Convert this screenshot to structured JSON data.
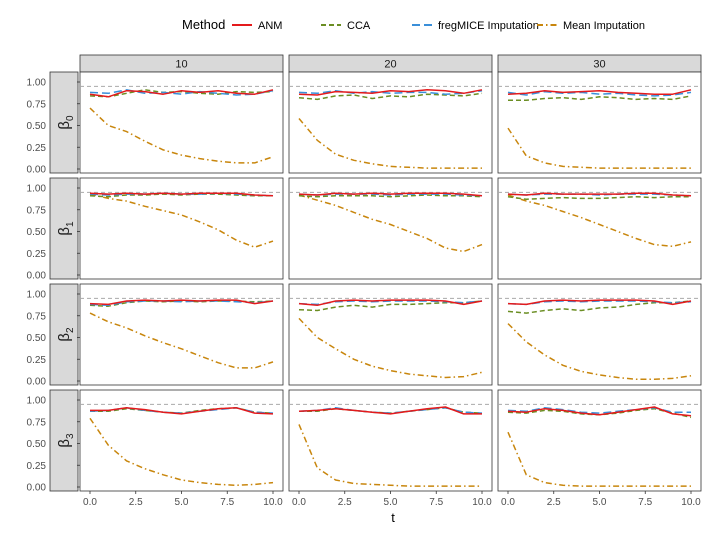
{
  "colors": {
    "ANM": "#e41a1c",
    "CCA": "#6b8e23",
    "fregMICE Imputation": "#3a8fd9",
    "Mean Imputation": "#c8860d",
    "reference": "#aaaaaa",
    "strip_fill": "#d9d9d9"
  },
  "legend": {
    "title": "Method",
    "items": [
      "ANM",
      "CCA",
      "fregMICE Imputation",
      "Mean Imputation"
    ]
  },
  "chart_data": {
    "type": "line",
    "xlabel": "t",
    "x_ticks": [
      "0.0",
      "2.5",
      "5.0",
      "7.5",
      "10.0"
    ],
    "xlim": [
      0,
      10
    ],
    "ylim": [
      0,
      1
    ],
    "y_ticks": [
      "0.00",
      "0.25",
      "0.50",
      "0.75",
      "1.00"
    ],
    "reference_line": 0.95,
    "col_facets": [
      "10",
      "20",
      "30"
    ],
    "row_facets": [
      {
        "symbol": "β",
        "sub": "0"
      },
      {
        "symbol": "β",
        "sub": "1"
      },
      {
        "symbol": "β",
        "sub": "2"
      },
      {
        "symbol": "β",
        "sub": "3"
      }
    ],
    "x": [
      0,
      1,
      2,
      3,
      4,
      5,
      6,
      7,
      8,
      9,
      10
    ],
    "panels": [
      [
        {
          "ANM": [
            0.86,
            0.83,
            0.9,
            0.89,
            0.86,
            0.9,
            0.88,
            0.9,
            0.87,
            0.86,
            0.91
          ],
          "CCA": [
            0.84,
            0.83,
            0.87,
            0.91,
            0.88,
            0.89,
            0.87,
            0.86,
            0.89,
            0.88,
            0.89
          ],
          "fregMICE Imputation": [
            0.88,
            0.87,
            0.91,
            0.87,
            0.88,
            0.86,
            0.89,
            0.87,
            0.85,
            0.86,
            0.9
          ],
          "Mean Imputation": [
            0.7,
            0.5,
            0.43,
            0.32,
            0.22,
            0.16,
            0.12,
            0.09,
            0.07,
            0.07,
            0.14
          ]
        },
        {
          "ANM": [
            0.86,
            0.85,
            0.89,
            0.88,
            0.87,
            0.9,
            0.89,
            0.91,
            0.9,
            0.87,
            0.91
          ],
          "CCA": [
            0.82,
            0.8,
            0.84,
            0.85,
            0.81,
            0.84,
            0.83,
            0.86,
            0.85,
            0.84,
            0.87
          ],
          "fregMICE Imputation": [
            0.88,
            0.87,
            0.9,
            0.87,
            0.89,
            0.87,
            0.88,
            0.88,
            0.86,
            0.87,
            0.9
          ],
          "Mean Imputation": [
            0.58,
            0.33,
            0.17,
            0.1,
            0.06,
            0.03,
            0.02,
            0.01,
            0.01,
            0.01,
            0.01
          ]
        },
        {
          "ANM": [
            0.86,
            0.87,
            0.9,
            0.88,
            0.89,
            0.9,
            0.88,
            0.87,
            0.86,
            0.86,
            0.91
          ],
          "CCA": [
            0.79,
            0.79,
            0.81,
            0.82,
            0.8,
            0.83,
            0.82,
            0.8,
            0.81,
            0.8,
            0.84
          ],
          "fregMICE Imputation": [
            0.88,
            0.85,
            0.89,
            0.87,
            0.88,
            0.86,
            0.87,
            0.85,
            0.84,
            0.85,
            0.88
          ],
          "Mean Imputation": [
            0.47,
            0.15,
            0.07,
            0.03,
            0.02,
            0.01,
            0.01,
            0.01,
            0.01,
            0.01,
            0.01
          ]
        }
      ],
      [
        {
          "ANM": [
            0.94,
            0.93,
            0.94,
            0.93,
            0.94,
            0.93,
            0.94,
            0.94,
            0.94,
            0.92,
            0.91
          ],
          "CCA": [
            0.91,
            0.9,
            0.92,
            0.92,
            0.93,
            0.92,
            0.93,
            0.93,
            0.92,
            0.91,
            0.91
          ],
          "fregMICE Imputation": [
            0.93,
            0.92,
            0.93,
            0.93,
            0.94,
            0.93,
            0.93,
            0.94,
            0.93,
            0.92,
            0.91
          ],
          "Mean Imputation": [
            0.93,
            0.88,
            0.85,
            0.79,
            0.74,
            0.69,
            0.61,
            0.52,
            0.4,
            0.32,
            0.39
          ]
        },
        {
          "ANM": [
            0.93,
            0.92,
            0.94,
            0.93,
            0.94,
            0.93,
            0.94,
            0.94,
            0.94,
            0.93,
            0.91
          ],
          "CCA": [
            0.91,
            0.9,
            0.91,
            0.91,
            0.91,
            0.9,
            0.91,
            0.92,
            0.91,
            0.91,
            0.9
          ],
          "fregMICE Imputation": [
            0.93,
            0.92,
            0.93,
            0.93,
            0.93,
            0.92,
            0.93,
            0.93,
            0.93,
            0.92,
            0.91
          ],
          "Mean Imputation": [
            0.92,
            0.86,
            0.8,
            0.72,
            0.64,
            0.58,
            0.5,
            0.42,
            0.31,
            0.27,
            0.35
          ]
        },
        {
          "ANM": [
            0.93,
            0.92,
            0.94,
            0.93,
            0.93,
            0.93,
            0.93,
            0.94,
            0.94,
            0.92,
            0.91
          ],
          "CCA": [
            0.9,
            0.87,
            0.88,
            0.89,
            0.88,
            0.88,
            0.89,
            0.9,
            0.89,
            0.9,
            0.9
          ],
          "fregMICE Imputation": [
            0.93,
            0.92,
            0.93,
            0.93,
            0.93,
            0.92,
            0.93,
            0.93,
            0.93,
            0.92,
            0.91
          ],
          "Mean Imputation": [
            0.92,
            0.85,
            0.8,
            0.73,
            0.66,
            0.58,
            0.5,
            0.42,
            0.35,
            0.33,
            0.38
          ]
        }
      ],
      [
        {
          "ANM": [
            0.89,
            0.88,
            0.92,
            0.93,
            0.92,
            0.93,
            0.92,
            0.93,
            0.93,
            0.89,
            0.92
          ],
          "CCA": [
            0.87,
            0.86,
            0.9,
            0.92,
            0.91,
            0.92,
            0.91,
            0.92,
            0.92,
            0.91,
            0.92
          ],
          "fregMICE Imputation": [
            0.88,
            0.87,
            0.91,
            0.92,
            0.92,
            0.91,
            0.92,
            0.92,
            0.91,
            0.9,
            0.92
          ],
          "Mean Imputation": [
            0.78,
            0.68,
            0.61,
            0.52,
            0.44,
            0.37,
            0.29,
            0.21,
            0.15,
            0.15,
            0.22
          ]
        },
        {
          "ANM": [
            0.89,
            0.87,
            0.92,
            0.93,
            0.92,
            0.93,
            0.93,
            0.93,
            0.92,
            0.88,
            0.92
          ],
          "CCA": [
            0.82,
            0.81,
            0.85,
            0.87,
            0.85,
            0.88,
            0.88,
            0.89,
            0.9,
            0.9,
            0.92
          ],
          "fregMICE Imputation": [
            0.89,
            0.88,
            0.91,
            0.92,
            0.91,
            0.92,
            0.92,
            0.92,
            0.91,
            0.9,
            0.92
          ],
          "Mean Imputation": [
            0.72,
            0.5,
            0.37,
            0.25,
            0.17,
            0.12,
            0.08,
            0.06,
            0.04,
            0.05,
            0.1
          ]
        },
        {
          "ANM": [
            0.89,
            0.88,
            0.92,
            0.93,
            0.92,
            0.93,
            0.93,
            0.93,
            0.92,
            0.88,
            0.92
          ],
          "CCA": [
            0.8,
            0.78,
            0.81,
            0.83,
            0.81,
            0.84,
            0.85,
            0.88,
            0.9,
            0.9,
            0.92
          ],
          "fregMICE Imputation": [
            0.89,
            0.88,
            0.91,
            0.92,
            0.91,
            0.92,
            0.92,
            0.92,
            0.91,
            0.9,
            0.91
          ],
          "Mean Imputation": [
            0.66,
            0.45,
            0.3,
            0.18,
            0.11,
            0.07,
            0.04,
            0.02,
            0.02,
            0.03,
            0.06
          ]
        }
      ],
      [
        {
          "ANM": [
            0.88,
            0.88,
            0.91,
            0.89,
            0.86,
            0.84,
            0.87,
            0.9,
            0.91,
            0.85,
            0.84
          ],
          "CCA": [
            0.87,
            0.87,
            0.9,
            0.88,
            0.86,
            0.85,
            0.88,
            0.9,
            0.91,
            0.86,
            0.85
          ],
          "fregMICE Imputation": [
            0.87,
            0.88,
            0.91,
            0.88,
            0.86,
            0.85,
            0.87,
            0.89,
            0.91,
            0.86,
            0.85
          ],
          "Mean Imputation": [
            0.79,
            0.48,
            0.3,
            0.21,
            0.14,
            0.08,
            0.05,
            0.03,
            0.02,
            0.03,
            0.05
          ]
        },
        {
          "ANM": [
            0.87,
            0.88,
            0.9,
            0.88,
            0.86,
            0.84,
            0.87,
            0.9,
            0.92,
            0.84,
            0.84
          ],
          "CCA": [
            0.87,
            0.87,
            0.9,
            0.88,
            0.86,
            0.85,
            0.87,
            0.89,
            0.91,
            0.86,
            0.85
          ],
          "fregMICE Imputation": [
            0.87,
            0.88,
            0.91,
            0.88,
            0.86,
            0.85,
            0.87,
            0.89,
            0.91,
            0.86,
            0.85
          ],
          "Mean Imputation": [
            0.72,
            0.22,
            0.08,
            0.04,
            0.03,
            0.02,
            0.01,
            0.01,
            0.01,
            0.01,
            0.01
          ]
        },
        {
          "ANM": [
            0.87,
            0.86,
            0.9,
            0.88,
            0.85,
            0.83,
            0.86,
            0.89,
            0.92,
            0.84,
            0.82
          ],
          "CCA": [
            0.86,
            0.85,
            0.88,
            0.87,
            0.84,
            0.83,
            0.85,
            0.88,
            0.9,
            0.85,
            0.8
          ],
          "fregMICE Imputation": [
            0.88,
            0.87,
            0.91,
            0.89,
            0.86,
            0.85,
            0.87,
            0.89,
            0.91,
            0.86,
            0.86
          ],
          "Mean Imputation": [
            0.63,
            0.14,
            0.05,
            0.02,
            0.01,
            0.01,
            0.01,
            0.01,
            0.01,
            0.01,
            0.01
          ]
        }
      ]
    ]
  }
}
